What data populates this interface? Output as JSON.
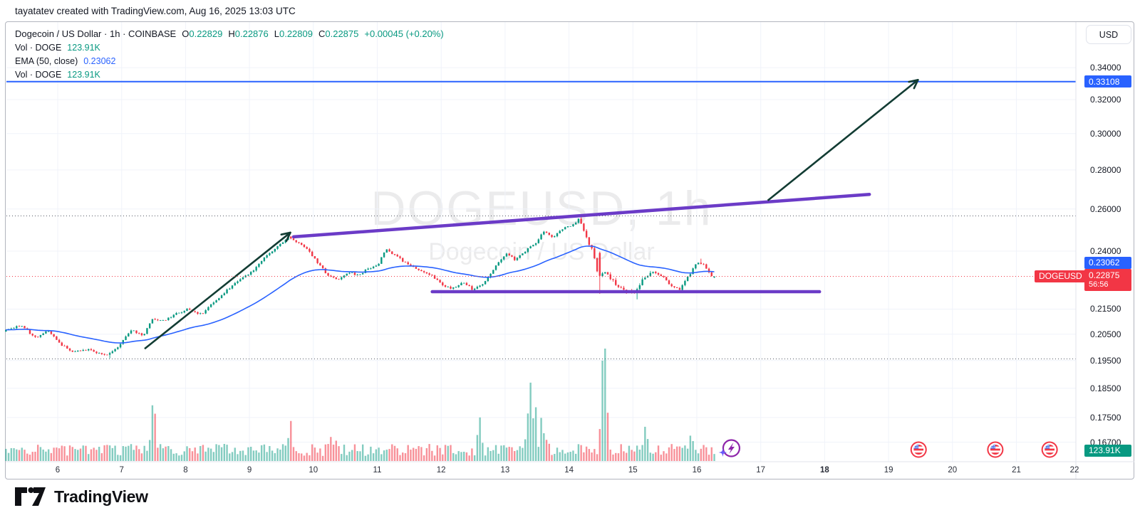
{
  "attribution": "tayatatev created with TradingView.com, Aug 16, 2025 13:03 UTC",
  "legend": {
    "symbol_title": "Dogecoin / US Dollar",
    "dot": "·",
    "interval": "1h",
    "exchange": "COINBASE",
    "ohlc": {
      "o_label": "O",
      "o": "0.22829",
      "h_label": "H",
      "h": "0.22876",
      "l_label": "L",
      "l": "0.22809",
      "c_label": "C",
      "c": "0.22875",
      "change": "+0.00045 (+0.20%)"
    },
    "vol_row": {
      "label": "Vol · DOGE",
      "value": "123.91K"
    },
    "ema_row": {
      "label": "EMA (50, close)",
      "value": "0.23062"
    },
    "vol_row2": {
      "label": "Vol · DOGE",
      "value": "123.91K"
    }
  },
  "watermark": {
    "line1": "DOGEUSD, 1h",
    "line2": "Dogecoin / US Dollar"
  },
  "axis": {
    "currency_button": "USD",
    "price_ticks": [
      {
        "label": "0.34000",
        "value": 0.34
      },
      {
        "label": "0.32000",
        "value": 0.32
      },
      {
        "label": "0.30000",
        "value": 0.3
      },
      {
        "label": "0.28000",
        "value": 0.28
      },
      {
        "label": "0.26000",
        "value": 0.26
      },
      {
        "label": "0.24000",
        "value": 0.24
      },
      {
        "label": "0.21500",
        "value": 0.215
      },
      {
        "label": "0.20500",
        "value": 0.205
      },
      {
        "label": "0.19500",
        "value": 0.195
      },
      {
        "label": "0.18500",
        "value": 0.185
      },
      {
        "label": "0.17500",
        "value": 0.175
      },
      {
        "label": "0.16700",
        "value": 0.167
      }
    ],
    "date_labels": [
      "6",
      "7",
      "8",
      "9",
      "10",
      "11",
      "12",
      "13",
      "14",
      "15",
      "16",
      "17",
      "18",
      "19",
      "20",
      "21",
      "22"
    ],
    "first_day": 6,
    "bold_date": "18"
  },
  "badges": {
    "target_line": "0.33108",
    "ema": "0.23062",
    "price": "0.22875",
    "countdown": "56:56",
    "symbol_tag": "DOGEUSD",
    "volume": "123.91K"
  },
  "logo_text": "TradingView",
  "colors": {
    "up": "#089981",
    "down": "#f23645",
    "vol_up": "rgba(8,153,129,0.5)",
    "vol_down": "rgba(242,54,69,0.55)",
    "ema": "#2962ff",
    "target_line": "#2962ff",
    "trendline": "#6b3bc7",
    "arrow": "#123c33",
    "grid": "#f0f3fa",
    "axis_border": "#e0e3eb",
    "dotted_gray": "#555b66",
    "dotted_red": "#f23645",
    "badge_blue": "#2962ff",
    "badge_red": "#f23645",
    "badge_green": "#089981",
    "event_icon_red": "#f23645",
    "event_icon_blue": "#3965e8",
    "ai_icon_purple": "#8e24aa",
    "ai_sparkle": "#6a5af9"
  },
  "chart_data": {
    "type": "candlestick",
    "symbol": "DOGEUSD",
    "title": "Dogecoin / US Dollar",
    "interval": "1h",
    "exchange": "COINBASE",
    "price_scale": "log",
    "ylim": [
      0.163,
      0.345
    ],
    "x_axis_days_aug_2025": [
      6,
      7,
      8,
      9,
      10,
      11,
      12,
      13,
      14,
      15,
      16,
      17,
      18,
      19,
      20,
      21,
      22
    ],
    "last_bar": {
      "open": 0.22829,
      "high": 0.22876,
      "low": 0.22809,
      "close": 0.22875,
      "change": 0.00045,
      "change_pct": 0.2,
      "volume_label": "123.91K",
      "bar_close_countdown": "56:56"
    },
    "ema50_last": 0.23062,
    "levels": {
      "target_price_line": 0.33108,
      "period_high_dotted": 0.2566,
      "period_low_dotted": 0.1956,
      "current_price_dotted": 0.22875,
      "support": 0.2222
    },
    "trendlines": [
      {
        "name": "ascending-resistance",
        "from_day": 9.69,
        "from_price": 0.2466,
        "to_day": 18.7,
        "to_price": 0.2673
      },
      {
        "name": "horizontal-support",
        "from_day": 11.86,
        "from_price": 0.2222,
        "to_day": 17.92,
        "to_price": 0.2222
      }
    ],
    "arrows": [
      {
        "name": "uptrend-arrow",
        "from_day": 7.36,
        "from_price": 0.1994,
        "to_day": 9.64,
        "to_price": 0.2486
      },
      {
        "name": "projection-arrow",
        "from_day": 17.11,
        "from_price": 0.2642,
        "to_day": 19.46,
        "to_price": 0.3322
      }
    ],
    "price_path_waypoints": [
      [
        5.19,
        0.206
      ],
      [
        5.45,
        0.2085
      ],
      [
        5.7,
        0.2038
      ],
      [
        5.9,
        0.2062
      ],
      [
        6.1,
        0.2008
      ],
      [
        6.3,
        0.1982
      ],
      [
        6.5,
        0.1992
      ],
      [
        6.8,
        0.1968
      ],
      [
        7.0,
        0.2002
      ],
      [
        7.2,
        0.2068
      ],
      [
        7.38,
        0.2042
      ],
      [
        7.52,
        0.211
      ],
      [
        7.7,
        0.2105
      ],
      [
        7.9,
        0.2132
      ],
      [
        8.1,
        0.2152
      ],
      [
        8.28,
        0.2128
      ],
      [
        8.5,
        0.218
      ],
      [
        8.7,
        0.223
      ],
      [
        8.9,
        0.228
      ],
      [
        9.1,
        0.2312
      ],
      [
        9.3,
        0.238
      ],
      [
        9.5,
        0.2425
      ],
      [
        9.65,
        0.2465
      ],
      [
        9.8,
        0.2442
      ],
      [
        9.95,
        0.2408
      ],
      [
        10.1,
        0.2352
      ],
      [
        10.28,
        0.2288
      ],
      [
        10.45,
        0.2278
      ],
      [
        10.6,
        0.2302
      ],
      [
        10.75,
        0.2295
      ],
      [
        10.9,
        0.2322
      ],
      [
        11.05,
        0.2338
      ],
      [
        11.18,
        0.2408
      ],
      [
        11.32,
        0.2382
      ],
      [
        11.5,
        0.2342
      ],
      [
        11.7,
        0.231
      ],
      [
        11.9,
        0.2288
      ],
      [
        12.05,
        0.2255
      ],
      [
        12.2,
        0.2232
      ],
      [
        12.38,
        0.2262
      ],
      [
        12.55,
        0.2228
      ],
      [
        12.72,
        0.2262
      ],
      [
        12.9,
        0.2332
      ],
      [
        13.05,
        0.2388
      ],
      [
        13.2,
        0.2362
      ],
      [
        13.35,
        0.2398
      ],
      [
        13.5,
        0.2432
      ],
      [
        13.65,
        0.2492
      ],
      [
        13.8,
        0.2462
      ],
      [
        13.95,
        0.2508
      ],
      [
        14.1,
        0.2522
      ],
      [
        14.2,
        0.2552
      ],
      [
        14.3,
        0.2478
      ],
      [
        14.42,
        0.2388
      ],
      [
        14.5,
        0.2292
      ],
      [
        14.62,
        0.2305
      ],
      [
        14.75,
        0.2262
      ],
      [
        14.9,
        0.2228
      ],
      [
        15.05,
        0.2216
      ],
      [
        15.2,
        0.2272
      ],
      [
        15.35,
        0.2312
      ],
      [
        15.5,
        0.2288
      ],
      [
        15.65,
        0.2242
      ],
      [
        15.78,
        0.2232
      ],
      [
        15.92,
        0.2292
      ],
      [
        16.05,
        0.2348
      ],
      [
        16.15,
        0.2342
      ],
      [
        16.22,
        0.2312
      ],
      [
        16.28,
        0.22875
      ]
    ],
    "key_extremes": [
      {
        "day": 6.8,
        "low": 0.1958
      },
      {
        "day": 9.65,
        "high": 0.2468
      },
      {
        "day": 14.2,
        "high": 0.2566
      },
      {
        "day": 14.5,
        "open": 0.2392,
        "close": 0.229,
        "low": 0.2213,
        "high": 0.2398
      },
      {
        "day": 15.05,
        "low": 0.219
      },
      {
        "day": 16.05,
        "high": 0.2366
      }
    ],
    "data_start_day": 5.19,
    "data_end_day": 16.28,
    "volume_spikes": [
      {
        "day": 7.5,
        "mult": 4.2
      },
      {
        "day": 9.62,
        "mult": 2.0
      },
      {
        "day": 10.3,
        "mult": 1.6
      },
      {
        "day": 12.6,
        "mult": 1.7
      },
      {
        "day": 13.37,
        "mult": 5.5
      },
      {
        "day": 13.47,
        "mult": 3.1
      },
      {
        "day": 13.6,
        "mult": 3.1
      },
      {
        "day": 14.53,
        "mult": 7.2
      },
      {
        "day": 14.57,
        "mult": 4.6
      },
      {
        "day": 15.19,
        "mult": 4.6
      },
      {
        "day": 15.9,
        "mult": 1.8
      }
    ],
    "economic_event_icon_days": [
      19.47,
      20.67,
      21.52
    ],
    "ai_spark_icon_day": 16.54
  }
}
